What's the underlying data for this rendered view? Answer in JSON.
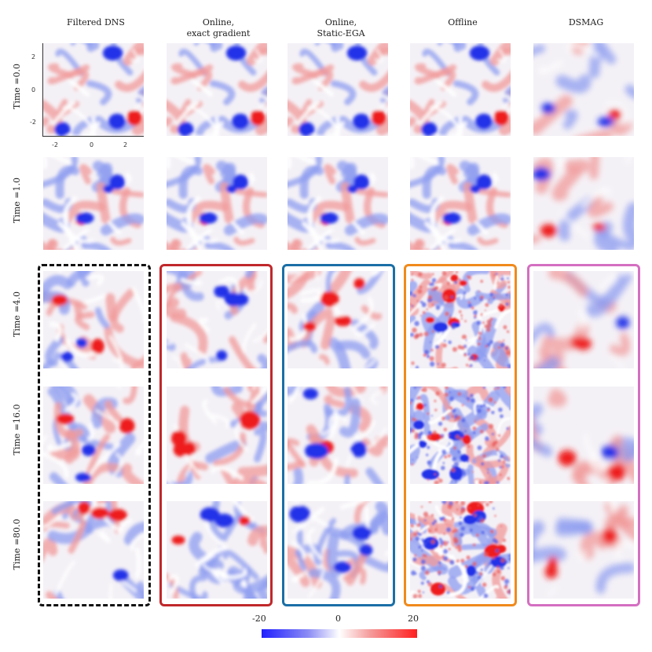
{
  "columns": [
    "Filtered DNS",
    "Online,\nexact gradient",
    "Online,\nStatic-EGA",
    "Offline",
    "DSMAG"
  ],
  "rows": [
    "Time =0.0",
    "Time =1.0",
    "Time =4.0",
    "Time =16.0",
    "Time =80.0"
  ],
  "axis": {
    "y_ticks": [
      "2",
      "0",
      "-2"
    ],
    "x_ticks": [
      "-2",
      "0",
      "2"
    ]
  },
  "colorbar": {
    "ticks": [
      "-20",
      "0",
      "20"
    ],
    "colors": [
      "#1f1fff",
      "#ffffff",
      "#ff1f1f"
    ]
  },
  "frame_colors": {
    "Filtered DNS": "#111111",
    "Online, exact gradient": "#c0282b",
    "Online, Static-EGA": "#1a6fa6",
    "Offline": "#f08a1c",
    "DSMAG": "#d46fc1"
  }
}
